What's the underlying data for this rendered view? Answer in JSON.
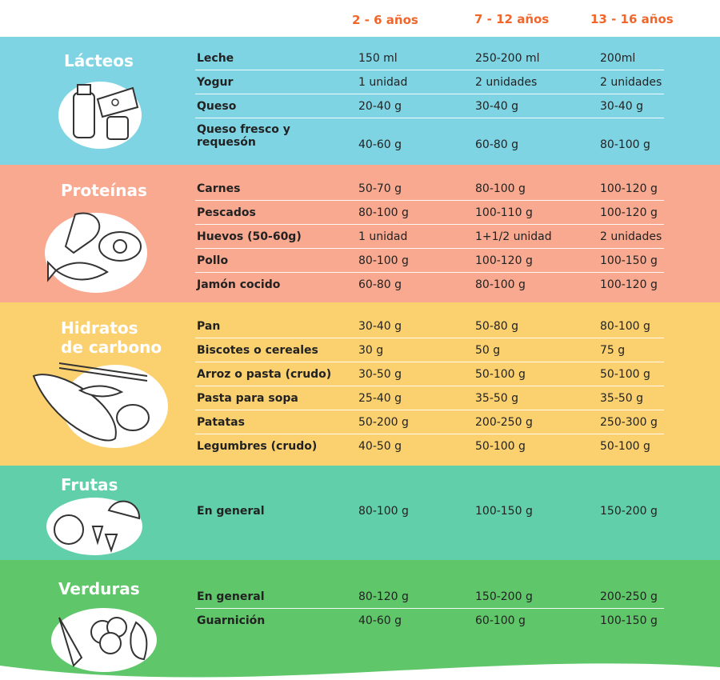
{
  "headers": {
    "col1": "2 - 6 años",
    "col2": "7 - 12 años",
    "col3": "13 - 16 años"
  },
  "colors": {
    "lacteos": "#7fd4e4",
    "proteinas": "#f8a98f",
    "hidratos": "#fbd170",
    "frutas": "#62cfab",
    "verduras": "#5fc66a",
    "header_accent": "#f0662b"
  },
  "sections": {
    "lacteos": {
      "title": "Lácteos",
      "icon": "dairy-illustration",
      "rows": [
        {
          "food": "Leche",
          "a": "150 ml",
          "b": "250-200 ml",
          "c": "200ml"
        },
        {
          "food": "Yogur",
          "a": "1 unidad",
          "b": "2 unidades",
          "c": "2 unidades"
        },
        {
          "food": "Queso",
          "a": "20-40 g",
          "b": "30-40 g",
          "c": "30-40 g"
        },
        {
          "food": "Queso fresco y requesón",
          "a": "40-60 g",
          "b": "60-80 g",
          "c": "80-100 g"
        }
      ]
    },
    "proteinas": {
      "title": "Proteínas",
      "icon": "protein-illustration",
      "rows": [
        {
          "food": "Carnes",
          "a": "50-70 g",
          "b": "80-100 g",
          "c": "100-120 g"
        },
        {
          "food": "Pescados",
          "a": "80-100 g",
          "b": "100-110 g",
          "c": "100-120 g"
        },
        {
          "food": "Huevos (50-60g)",
          "a": "1 unidad",
          "b": "1+1/2 unidad",
          "c": "2 unidades"
        },
        {
          "food": "Pollo",
          "a": "80-100 g",
          "b": "100-120 g",
          "c": "100-150 g"
        },
        {
          "food": "Jamón cocido",
          "a": "60-80 g",
          "b": "80-100 g",
          "c": "100-120 g"
        }
      ]
    },
    "hidratos": {
      "title_line1": "Hidratos",
      "title_line2": "de carbono",
      "icon": "bread-illustration",
      "rows": [
        {
          "food": "Pan",
          "a": "30-40 g",
          "b": "50-80 g",
          "c": "80-100 g"
        },
        {
          "food": "Biscotes o cereales",
          "a": "30 g",
          "b": "50 g",
          "c": "75 g"
        },
        {
          "food": "Arroz o pasta (crudo)",
          "a": "30-50 g",
          "b": "50-100 g",
          "c": "50-100 g"
        },
        {
          "food": "Pasta para sopa",
          "a": "25-40 g",
          "b": "35-50 g",
          "c": "35-50 g"
        },
        {
          "food": "Patatas",
          "a": "50-200 g",
          "b": "200-250 g",
          "c": "250-300 g"
        },
        {
          "food": "Legumbres (crudo)",
          "a": "40-50 g",
          "b": "50-100 g",
          "c": "50-100 g"
        }
      ]
    },
    "frutas": {
      "title": "Frutas",
      "icon": "fruit-illustration",
      "rows": [
        {
          "food": "En general",
          "a": "80-100 g",
          "b": "100-150 g",
          "c": "150-200 g"
        }
      ]
    },
    "verduras": {
      "title": "Verduras",
      "icon": "vegetable-illustration",
      "rows": [
        {
          "food": "En general",
          "a": "80-120 g",
          "b": "150-200 g",
          "c": "200-250 g"
        },
        {
          "food": "Guarnición",
          "a": "40-60 g",
          "b": "60-100 g",
          "c": "100-150 g"
        }
      ]
    }
  }
}
